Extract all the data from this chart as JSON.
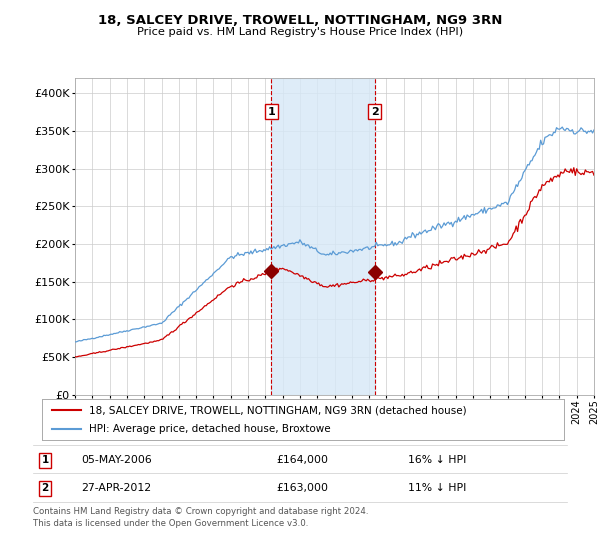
{
  "title": "18, SALCEY DRIVE, TROWELL, NOTTINGHAM, NG9 3RN",
  "subtitle": "Price paid vs. HM Land Registry's House Price Index (HPI)",
  "legend_line1": "18, SALCEY DRIVE, TROWELL, NOTTINGHAM, NG9 3RN (detached house)",
  "legend_line2": "HPI: Average price, detached house, Broxtowe",
  "ann1_date": "05-MAY-2006",
  "ann1_price": "£164,000",
  "ann1_pct": "16% ↓ HPI",
  "ann2_date": "27-APR-2012",
  "ann2_price": "£163,000",
  "ann2_pct": "11% ↓ HPI",
  "footnote1": "Contains HM Land Registry data © Crown copyright and database right 2024.",
  "footnote2": "This data is licensed under the Open Government Licence v3.0.",
  "hpi_color": "#5b9bd5",
  "price_color": "#cc0000",
  "marker_color": "#8b0000",
  "vline_color": "#cc0000",
  "shade_color": "#d6e8f7",
  "background_color": "#ffffff",
  "grid_color": "#cccccc",
  "ylim": [
    0,
    420000
  ],
  "yticks": [
    0,
    50000,
    100000,
    150000,
    200000,
    250000,
    300000,
    350000,
    400000
  ],
  "x_start_year": 1995,
  "x_end_year": 2025,
  "sale1_year": 2006.34,
  "sale2_year": 2012.32,
  "sale1_price": 164000,
  "sale2_price": 163000
}
